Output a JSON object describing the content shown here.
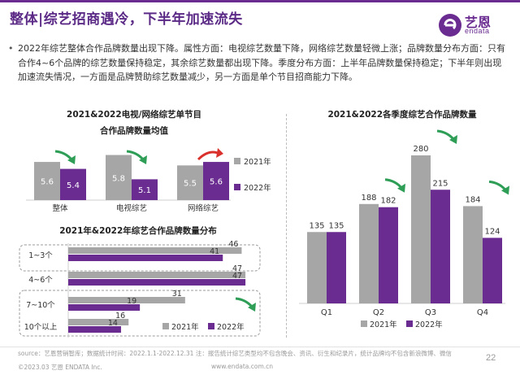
{
  "header": {
    "title": "整体|综艺招商遇冷，下半年加速流失",
    "logo_cn": "艺恩",
    "logo_en": "endata"
  },
  "summary": {
    "bullet": "•",
    "text": "2022年综艺整体合作品牌数量出现下降。属性方面：电视综艺数量下降，网络综艺数量轻微上涨；品牌数量分布方面：只有合作4~6个品牌的综艺数量保持稳定，其余综艺数量都出现下降。季度分布方面：上半年品牌数量保持稳定；下半年则出现加速流失情况，一方面是品牌赞助综艺数量减少，另一方面是单个节目招商能力下降。"
  },
  "footer": {
    "source": "source：艺恩营销智库；数据统计时间：2022.1.1-2022.12.31    注：报告统计综艺类型均不包含晚会、资讯、衍生和纪录片，统计品牌均不包含新浪微博、微信",
    "copyright": "©2023.03 艺恩 ENDATA Inc.",
    "website": "www.endata.com.cn",
    "page": "22"
  },
  "colors": {
    "brand": "#6a2c91",
    "series_2021": "#a6a6a6",
    "series_2022": "#6a2c91",
    "down_arrow": "#2e9e57",
    "up_arrow": "#d9302c",
    "highlight_box": "#9b9b9b"
  },
  "chart_data": [
    {
      "type": "bar",
      "title": "2021&2022电视/网络综艺单节目合作品牌数量均值",
      "title_line1": "2021&2022电视/网络综艺单节目",
      "title_line2": "合作品牌数量均值",
      "categories": [
        "整体",
        "电视综艺",
        "网络综艺"
      ],
      "series": [
        {
          "name": "2021年",
          "values": [
            5.6,
            5.8,
            5.5
          ]
        },
        {
          "name": "2022年",
          "values": [
            5.4,
            5.1,
            5.6
          ]
        }
      ],
      "trend": [
        "down",
        "down",
        "up"
      ],
      "ylim": [
        4.5,
        6.0
      ],
      "legend": "right"
    },
    {
      "type": "bar",
      "orientation": "horizontal",
      "title": "2021年&2022年综艺合作品牌数量分布",
      "categories": [
        "1~3个",
        "4~6个",
        "7~10个",
        "10个以上"
      ],
      "series": [
        {
          "name": "2021年",
          "values": [
            46,
            47,
            31,
            16
          ]
        },
        {
          "name": "2022年",
          "values": [
            41,
            47,
            19,
            14
          ]
        }
      ],
      "xlim": [
        0,
        50
      ],
      "legend": "bottom-right"
    },
    {
      "type": "bar",
      "title": "2021&2022各季度综艺合作品牌数量",
      "categories": [
        "Q1",
        "Q2",
        "Q3",
        "Q4"
      ],
      "series": [
        {
          "name": "2021年",
          "values": [
            135,
            188,
            280,
            184
          ]
        },
        {
          "name": "2022年",
          "values": [
            135,
            182,
            215,
            124
          ]
        }
      ],
      "trend": [
        "flat",
        "down",
        "down",
        "down"
      ],
      "ylim": [
        0,
        300
      ],
      "legend": "bottom"
    }
  ]
}
